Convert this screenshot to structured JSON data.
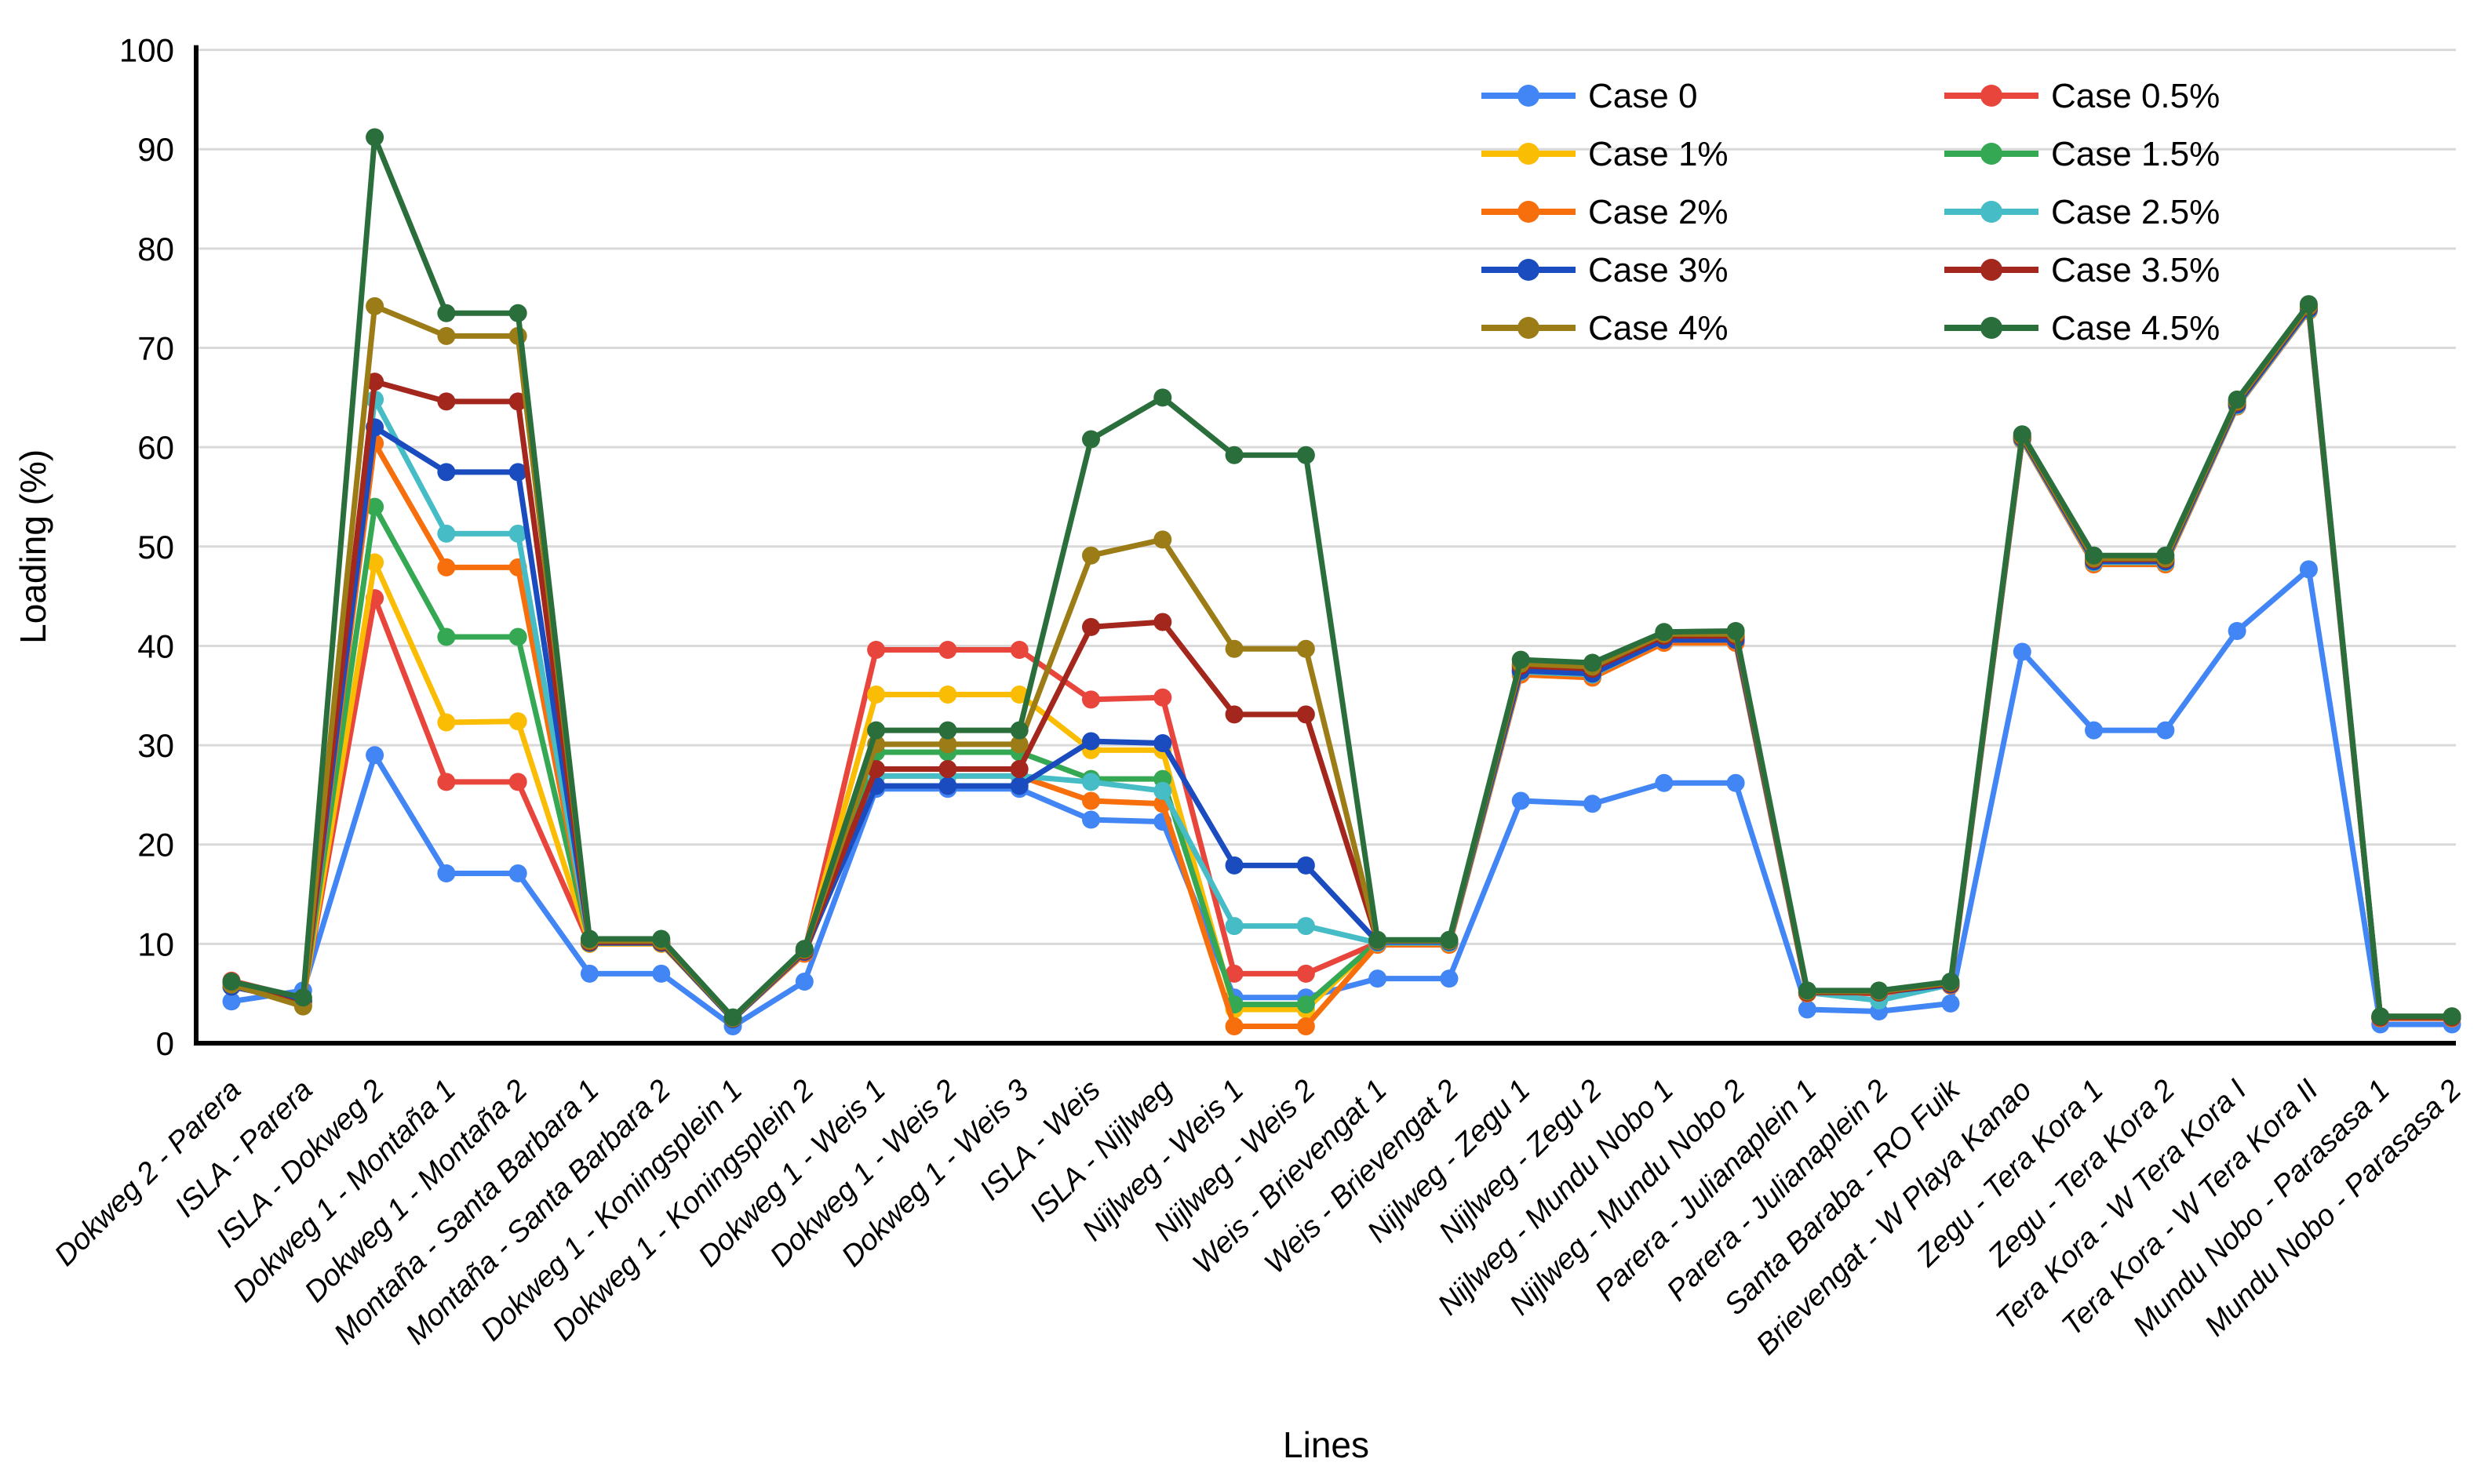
{
  "chart_data": {
    "type": "line",
    "title": "",
    "xlabel": "Lines",
    "ylabel": "Loading (%)",
    "ylim": [
      0,
      100
    ],
    "ytick_step": 10,
    "grid": true,
    "legend_position": "top-right, two columns inside plot",
    "marker": "filled-circle",
    "categories": [
      "Dokweg 2 - Parera",
      "ISLA - Parera",
      "ISLA - Dokweg 2",
      "Dokweg 1 - Montaña 1",
      "Dokweg 1 - Montaña 2",
      "Montaña - Santa Barbara 1",
      "Montaña - Santa Barbara 2",
      "Dokweg 1 - Koningsplein 1",
      "Dokweg 1 - Koningsplein 2",
      "Dokweg 1 - Weis 1",
      "Dokweg 1 - Weis 2",
      "Dokweg 1 - Weis 3",
      "ISLA - Weis",
      "ISLA - Nijlweg",
      "Nijlweg - Weis 1",
      "Nijlweg - Weis 2",
      "Weis - Brievengat 1",
      "Weis - Brievengat 2",
      "Nijlweg - Zegu 1",
      "Nijlweg - Zegu 2",
      "Nijlweg - Mundu Nobo 1",
      "Nijlweg - Mundu Nobo 2",
      "Parera - Julianaplein 1",
      "Parera - Julianaplein 2",
      "Santa Baraba - RO Fuik",
      "Brievengat - W Playa Kanao",
      "Zegu - Tera Kora 1",
      "Zegu - Tera Kora 2",
      "Tera Kora - W Tera Kora I",
      "Tera Kora - W Tera Kora II",
      "Mundu Nobo - Parasasa 1",
      "Mundu Nobo - Parasasa 2"
    ],
    "series": [
      {
        "name": "Case 0",
        "color": "#4285F4",
        "values": [
          4.2,
          5.3,
          29.0,
          17.1,
          17.1,
          7.0,
          7.0,
          1.7,
          6.2,
          25.6,
          25.6,
          25.6,
          22.5,
          22.3,
          4.6,
          4.6,
          6.5,
          6.5,
          24.4,
          24.1,
          26.2,
          26.2,
          3.4,
          3.2,
          4.0,
          39.4,
          31.5,
          31.5,
          41.5,
          47.7,
          1.9,
          1.9
        ]
      },
      {
        "name": "Case 0.5%",
        "color": "#E8453C",
        "values": [
          6.3,
          4.5,
          44.8,
          26.3,
          26.3,
          10.0,
          10.0,
          2.4,
          9.2,
          39.6,
          39.6,
          39.6,
          34.6,
          34.8,
          7.0,
          7.0,
          10.1,
          10.1,
          37.3,
          37.0,
          40.4,
          40.4,
          5.0,
          5.0,
          5.8,
          60.8,
          48.3,
          48.3,
          64.2,
          73.8,
          2.6,
          2.6
        ]
      },
      {
        "name": "Case 1%",
        "color": "#FBBC04",
        "values": [
          5.8,
          4.3,
          48.4,
          32.3,
          32.4,
          10.0,
          10.0,
          2.4,
          9.3,
          35.1,
          35.1,
          35.1,
          29.5,
          29.5,
          3.4,
          3.4,
          10.2,
          10.2,
          37.6,
          37.3,
          40.7,
          40.7,
          5.1,
          5.1,
          5.9,
          60.9,
          48.5,
          48.5,
          64.3,
          73.9,
          2.6,
          2.6
        ]
      },
      {
        "name": "Case 1.5%",
        "color": "#34A853",
        "values": [
          5.7,
          4.3,
          54.0,
          40.9,
          40.9,
          10.1,
          10.1,
          2.4,
          9.3,
          29.3,
          29.3,
          29.3,
          26.6,
          26.6,
          3.9,
          3.9,
          10.2,
          10.2,
          37.8,
          37.5,
          40.9,
          40.9,
          5.1,
          5.1,
          5.9,
          61.0,
          48.6,
          48.6,
          64.4,
          74.0,
          2.6,
          2.6
        ]
      },
      {
        "name": "Case 2%",
        "color": "#F76F0D",
        "values": [
          5.7,
          4.2,
          60.4,
          47.9,
          47.9,
          10.1,
          10.1,
          2.4,
          9.0,
          26.9,
          26.9,
          26.9,
          24.4,
          24.1,
          1.7,
          1.7,
          9.9,
          9.9,
          37.1,
          36.8,
          40.3,
          40.3,
          5.0,
          5.1,
          5.8,
          60.7,
          48.2,
          48.2,
          64.1,
          73.7,
          2.5,
          2.5
        ]
      },
      {
        "name": "Case 2.5%",
        "color": "#46BDC6",
        "values": [
          5.8,
          4.3,
          64.8,
          51.3,
          51.3,
          10.1,
          10.1,
          2.4,
          9.2,
          26.9,
          26.9,
          26.9,
          26.3,
          25.4,
          11.8,
          11.8,
          10.1,
          10.1,
          37.4,
          37.1,
          40.6,
          40.6,
          5.1,
          4.3,
          5.9,
          60.8,
          48.4,
          48.4,
          64.2,
          73.8,
          2.6,
          2.6
        ]
      },
      {
        "name": "Case 3%",
        "color": "#1A4CC0",
        "values": [
          5.7,
          4.2,
          62.0,
          57.5,
          57.5,
          10.1,
          10.1,
          2.4,
          9.2,
          25.9,
          25.9,
          25.9,
          30.4,
          30.2,
          17.9,
          17.9,
          10.2,
          10.2,
          37.5,
          37.2,
          40.6,
          40.6,
          5.1,
          5.1,
          5.9,
          60.9,
          48.5,
          48.5,
          64.3,
          73.9,
          2.6,
          2.6
        ]
      },
      {
        "name": "Case 3.5%",
        "color": "#A3271D",
        "values": [
          6.1,
          3.8,
          66.6,
          64.6,
          64.6,
          10.2,
          10.2,
          2.5,
          9.3,
          27.6,
          27.6,
          27.6,
          41.9,
          42.4,
          33.1,
          33.1,
          10.3,
          10.3,
          38.0,
          37.7,
          41.0,
          41.0,
          5.1,
          5.1,
          6.0,
          61.0,
          48.7,
          48.7,
          64.5,
          74.1,
          2.6,
          2.6
        ]
      },
      {
        "name": "Case 4%",
        "color": "#9C7C17",
        "values": [
          5.9,
          3.7,
          74.2,
          71.2,
          71.2,
          10.3,
          10.3,
          2.5,
          9.4,
          30.1,
          30.1,
          30.1,
          49.1,
          50.7,
          39.7,
          39.7,
          10.3,
          10.3,
          38.2,
          37.9,
          41.2,
          41.2,
          5.2,
          5.2,
          6.1,
          61.1,
          48.8,
          48.8,
          64.6,
          74.2,
          2.7,
          2.7
        ]
      },
      {
        "name": "Case 4.5%",
        "color": "#2A6E3C",
        "values": [
          6.2,
          4.6,
          91.2,
          73.5,
          73.5,
          10.5,
          10.5,
          2.6,
          9.5,
          31.5,
          31.5,
          31.5,
          60.8,
          65.0,
          59.2,
          59.2,
          10.4,
          10.4,
          38.6,
          38.3,
          41.4,
          41.5,
          5.3,
          5.3,
          6.2,
          61.3,
          49.1,
          49.1,
          64.8,
          74.4,
          2.7,
          2.7
        ]
      }
    ],
    "yticks": [
      0,
      10,
      20,
      30,
      40,
      50,
      60,
      70,
      80,
      90,
      100
    ]
  },
  "ui": {
    "background_color": "#ffffff",
    "grid_color": "#d9d9d9",
    "axis_color": "#000000",
    "x_axis_title": "Lines",
    "y_axis_title": "Loading (%)"
  }
}
